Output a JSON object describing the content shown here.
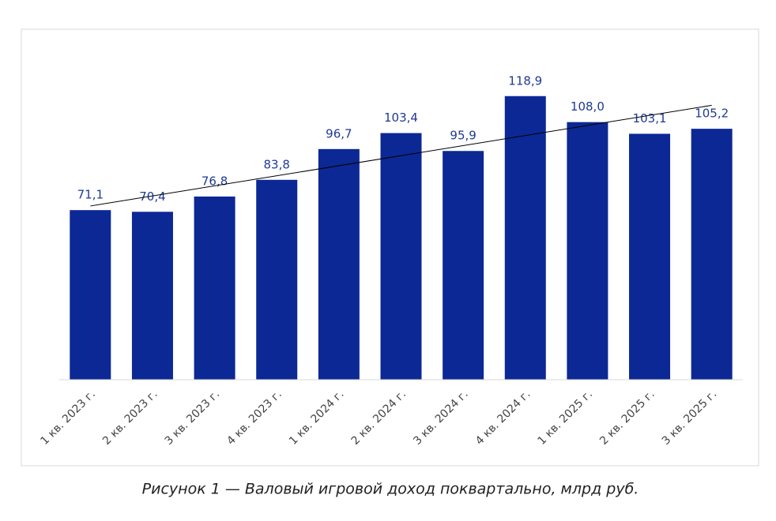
{
  "chart_data": {
    "type": "bar",
    "caption": "Рисунок 1 — Валовый игровой доход поквартально, млрд руб.",
    "categories": [
      "1 кв. 2023 г.",
      "2 кв. 2023 г.",
      "3 кв. 2023 г.",
      "4 кв. 2023 г.",
      "1 кв. 2024 г.",
      "2 кв. 2024 г.",
      "3 кв. 2024 г.",
      "4 кв. 2024 г.",
      "1 кв. 2025 г.",
      "2 кв. 2025 г.",
      "3 кв. 2025 г."
    ],
    "values": [
      71.1,
      70.4,
      76.8,
      83.8,
      96.7,
      103.4,
      95.9,
      118.9,
      108.0,
      103.1,
      105.2
    ],
    "value_labels": [
      "71,1",
      "70,4",
      "76,8",
      "83,8",
      "96,7",
      "103,4",
      "95,9",
      "118,9",
      "108,0",
      "103,1",
      "105,2"
    ],
    "color": "#0c2894",
    "ylim": [
      0,
      140
    ],
    "trendline": true
  }
}
